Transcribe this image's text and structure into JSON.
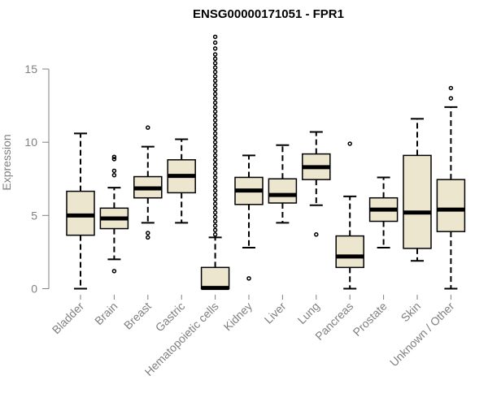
{
  "chart_data": {
    "type": "box",
    "title": "ENSG00000171051 - FPR1",
    "ylabel": "Expression",
    "xlabel": "",
    "ylim": [
      0,
      17.5
    ],
    "yticks": [
      0,
      5,
      10,
      15
    ],
    "ytick_labels": [
      "0",
      "5",
      "10",
      "15"
    ],
    "grid": false,
    "box_fill": "#ede6cf",
    "categories": [
      "Bladder",
      "Brain",
      "Breast",
      "Gastric",
      "Hematopoietic cells",
      "Kidney",
      "Liver",
      "Lung",
      "Pancreas",
      "Prostate",
      "Skin",
      "Unknown / Other"
    ],
    "boxes": [
      {
        "whisker_low": 0.0,
        "q1": 3.65,
        "median": 5.0,
        "q3": 6.65,
        "whisker_high": 10.6,
        "outliers": []
      },
      {
        "whisker_low": 2.0,
        "q1": 4.1,
        "median": 4.8,
        "q3": 5.5,
        "whisker_high": 6.9,
        "outliers": [
          1.2,
          7.75,
          8.05,
          8.85,
          9.0
        ]
      },
      {
        "whisker_low": 4.5,
        "q1": 6.2,
        "median": 6.85,
        "q3": 7.65,
        "whisker_high": 9.7,
        "outliers": [
          3.5,
          3.8,
          11.0
        ]
      },
      {
        "whisker_low": 4.5,
        "q1": 6.55,
        "median": 7.7,
        "q3": 8.8,
        "whisker_high": 10.2,
        "outliers": []
      },
      {
        "whisker_low": 0.0,
        "q1": 0.0,
        "median": 0.05,
        "q3": 1.45,
        "whisker_high": 3.5,
        "outliers": [
          3.7,
          4.0,
          4.3,
          4.6,
          4.9,
          5.2,
          5.5,
          5.8,
          6.1,
          6.4,
          6.7,
          7.0,
          7.3,
          7.6,
          7.9,
          8.2,
          8.5,
          8.8,
          9.1,
          9.4,
          9.7,
          10.0,
          10.3,
          10.6,
          10.9,
          11.2,
          11.5,
          11.8,
          12.1,
          12.4,
          12.7,
          13.0,
          13.3,
          13.6,
          13.9,
          14.2,
          14.5,
          14.8,
          15.1,
          15.4,
          15.7,
          16.0,
          16.4,
          16.8,
          17.2
        ]
      },
      {
        "whisker_low": 2.8,
        "q1": 5.75,
        "median": 6.7,
        "q3": 7.6,
        "whisker_high": 9.1,
        "outliers": [
          0.7
        ]
      },
      {
        "whisker_low": 4.5,
        "q1": 5.85,
        "median": 6.4,
        "q3": 7.5,
        "whisker_high": 9.8,
        "outliers": []
      },
      {
        "whisker_low": 5.7,
        "q1": 7.45,
        "median": 8.3,
        "q3": 9.2,
        "whisker_high": 10.7,
        "outliers": [
          3.7
        ]
      },
      {
        "whisker_low": 0.0,
        "q1": 1.45,
        "median": 2.2,
        "q3": 3.6,
        "whisker_high": 6.3,
        "outliers": [
          9.9
        ]
      },
      {
        "whisker_low": 2.8,
        "q1": 4.6,
        "median": 5.4,
        "q3": 6.2,
        "whisker_high": 7.6,
        "outliers": []
      },
      {
        "whisker_low": 1.9,
        "q1": 2.75,
        "median": 5.2,
        "q3": 9.1,
        "whisker_high": 11.6,
        "outliers": []
      },
      {
        "whisker_low": 0.0,
        "q1": 3.9,
        "median": 5.4,
        "q3": 7.45,
        "whisker_high": 12.4,
        "outliers": [
          13.0,
          13.7
        ]
      }
    ]
  }
}
